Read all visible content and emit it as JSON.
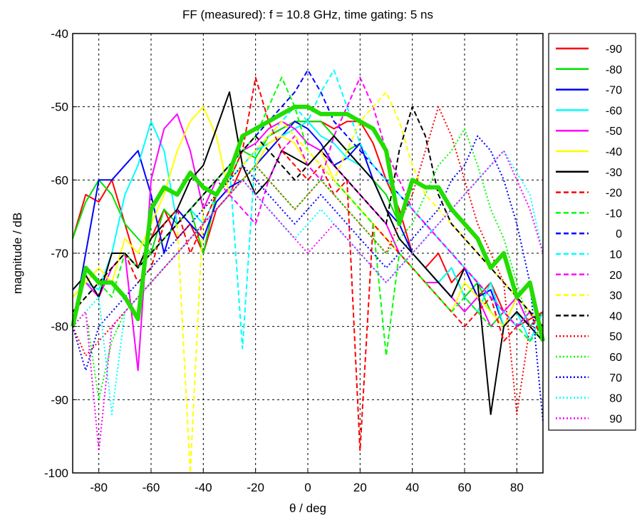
{
  "chart_data": {
    "type": "line",
    "title": "FF (measured): f = 10.8 GHz, time gating: 5 ns",
    "xlabel": "θ / deg",
    "ylabel": "magnitude / dB",
    "xlim": [
      -90,
      90
    ],
    "ylim": [
      -100,
      -40
    ],
    "xticks": [
      -80,
      -60,
      -40,
      -20,
      0,
      20,
      40,
      60,
      80
    ],
    "yticks": [
      -100,
      -90,
      -80,
      -70,
      -60,
      -50,
      -40
    ],
    "grid": true,
    "legend_position": "right, outside plot",
    "x": [
      -90,
      -85,
      -80,
      -75,
      -70,
      -65,
      -60,
      -55,
      -50,
      -45,
      -40,
      -35,
      -30,
      -25,
      -20,
      -15,
      -10,
      -5,
      0,
      5,
      10,
      15,
      20,
      25,
      30,
      35,
      40,
      45,
      50,
      55,
      60,
      65,
      70,
      75,
      80,
      85,
      90
    ],
    "series": [
      {
        "name": "-90",
        "color": "#ff0000",
        "dash": "solid",
        "values": [
          -68,
          -62,
          -63,
          -60,
          -66,
          -72,
          -68,
          -64,
          -68,
          -66,
          -70,
          -64,
          -62,
          -58,
          -56,
          -54,
          -53,
          -52,
          -52,
          -52,
          -53,
          -52,
          -52,
          -55,
          -60,
          -64,
          -70,
          -72,
          -70,
          -74,
          -72,
          -76,
          -74,
          -78,
          -80,
          -79,
          -78
        ]
      },
      {
        "name": "-80",
        "color": "#00e000",
        "dash": "solid",
        "values": [
          -68,
          -63,
          -60,
          -62,
          -66,
          -68,
          -70,
          -64,
          -66,
          -64,
          -70,
          -62,
          -60,
          -56,
          -57,
          -54,
          -53,
          -52,
          -52,
          -52,
          -54,
          -56,
          -55,
          -60,
          -62,
          -66,
          -70,
          -72,
          -74,
          -72,
          -76,
          -74,
          -78,
          -80,
          -76,
          -78,
          -80
        ]
      },
      {
        "name": "-70",
        "color": "#0000ff",
        "dash": "solid",
        "values": [
          -80,
          -70,
          -60,
          -60,
          -58,
          -56,
          -62,
          -70,
          -64,
          -66,
          -68,
          -63,
          -61,
          -60,
          -58,
          -56,
          -54,
          -52,
          -53,
          -55,
          -58,
          -57,
          -55,
          -60,
          -64,
          -66,
          -70,
          -72,
          -74,
          -76,
          -72,
          -76,
          -75,
          -80,
          -78,
          -80,
          -78
        ]
      },
      {
        "name": "-60",
        "color": "#00ffff",
        "dash": "solid",
        "values": [
          -76,
          -74,
          -75,
          -70,
          -62,
          -58,
          -52,
          -56,
          -66,
          -64,
          -66,
          -62,
          -60,
          -58,
          -56,
          -55,
          -54,
          -53,
          -52,
          -54,
          -55,
          -57,
          -58,
          -60,
          -64,
          -68,
          -70,
          -72,
          -74,
          -72,
          -76,
          -78,
          -74,
          -80,
          -78,
          -82,
          -78
        ]
      },
      {
        "name": "-50",
        "color": "#ff00ff",
        "dash": "solid",
        "values": [
          -76,
          -74,
          -76,
          -72,
          -70,
          -86,
          -60,
          -53,
          -51,
          -56,
          -64,
          -60,
          -58,
          -56,
          -55,
          -53,
          -52,
          -53,
          -55,
          -56,
          -58,
          -60,
          -62,
          -64,
          -66,
          -70,
          -72,
          -74,
          -74,
          -76,
          -78,
          -76,
          -80,
          -78,
          -76,
          -80,
          -78
        ]
      },
      {
        "name": "-40",
        "color": "#ffff00",
        "dash": "solid",
        "values": [
          -76,
          -74,
          -72,
          -74,
          -68,
          -70,
          -66,
          -62,
          -56,
          -52,
          -50,
          -54,
          -62,
          -60,
          -58,
          -55,
          -54,
          -55,
          -58,
          -56,
          -60,
          -62,
          -64,
          -66,
          -68,
          -70,
          -72,
          -74,
          -76,
          -78,
          -74,
          -76,
          -78,
          -80,
          -76,
          -78,
          -80
        ]
      },
      {
        "name": "-30",
        "color": "#000000",
        "dash": "solid",
        "values": [
          -75,
          -73,
          -76,
          -70,
          -70,
          -72,
          -68,
          -66,
          -64,
          -60,
          -58,
          -53,
          -48,
          -58,
          -62,
          -60,
          -56,
          -57,
          -58,
          -56,
          -54,
          -56,
          -58,
          -60,
          -64,
          -68,
          -70,
          -72,
          -74,
          -76,
          -72,
          -74,
          -92,
          -80,
          -78,
          -80,
          -82
        ]
      },
      {
        "name": "-20",
        "color": "#ff0000",
        "dash": "dashed",
        "values": [
          -78,
          -76,
          -74,
          -72,
          -70,
          -74,
          -72,
          -66,
          -64,
          -70,
          -66,
          -62,
          -60,
          -56,
          -46,
          -52,
          -56,
          -58,
          -60,
          -58,
          -62,
          -60,
          -97,
          -66,
          -68,
          -70,
          -72,
          -74,
          -76,
          -78,
          -80,
          -78,
          -76,
          -82,
          -80,
          -78,
          -82
        ]
      },
      {
        "name": "-10",
        "color": "#00ff00",
        "dash": "dashed",
        "values": [
          -78,
          -76,
          -74,
          -76,
          -70,
          -72,
          -70,
          -68,
          -66,
          -64,
          -62,
          -60,
          -58,
          -56,
          -54,
          -50,
          -46,
          -50,
          -56,
          -58,
          -60,
          -62,
          -64,
          -66,
          -84,
          -70,
          -72,
          -74,
          -76,
          -78,
          -76,
          -78,
          -80,
          -78,
          -80,
          -82,
          -80
        ]
      },
      {
        "name": "0",
        "color": "#0000ff",
        "dash": "dashed",
        "values": [
          -78,
          -76,
          -74,
          -72,
          -70,
          -72,
          -70,
          -68,
          -66,
          -64,
          -62,
          -60,
          -58,
          -56,
          -54,
          -52,
          -50,
          -48,
          -45,
          -48,
          -52,
          -54,
          -56,
          -58,
          -60,
          -62,
          -64,
          -66,
          -68,
          -70,
          -72,
          -74,
          -76,
          -78,
          -80,
          -78,
          -80
        ]
      },
      {
        "name": "10",
        "color": "#00ffff",
        "dash": "dashed",
        "values": [
          -78,
          -76,
          -74,
          -72,
          -70,
          -72,
          -70,
          -68,
          -66,
          -64,
          -62,
          -60,
          -58,
          -83,
          -56,
          -54,
          -52,
          -50,
          -52,
          -48,
          -45,
          -50,
          -55,
          -58,
          -60,
          -62,
          -64,
          -66,
          -68,
          -70,
          -72,
          -74,
          -76,
          -78,
          -80,
          -78,
          -80
        ]
      },
      {
        "name": "20",
        "color": "#ff00ff",
        "dash": "dashed",
        "values": [
          -78,
          -76,
          -74,
          -72,
          -70,
          -72,
          -70,
          -68,
          -66,
          -64,
          -62,
          -60,
          -62,
          -64,
          -66,
          -60,
          -56,
          -54,
          -58,
          -60,
          -54,
          -50,
          -46,
          -50,
          -56,
          -60,
          -64,
          -66,
          -68,
          -70,
          -72,
          -74,
          -76,
          -78,
          -80,
          -78,
          -80
        ]
      },
      {
        "name": "30",
        "color": "#ffff00",
        "dash": "dashed",
        "values": [
          -78,
          -76,
          -74,
          -72,
          -70,
          -72,
          -70,
          -68,
          -66,
          -100,
          -64,
          -62,
          -60,
          -58,
          -56,
          -54,
          -52,
          -54,
          -56,
          -58,
          -60,
          -56,
          -52,
          -50,
          -48,
          -52,
          -58,
          -62,
          -64,
          -66,
          -68,
          -70,
          -72,
          -74,
          -76,
          -78,
          -80
        ]
      },
      {
        "name": "40",
        "color": "#000000",
        "dash": "dashed",
        "values": [
          -78,
          -76,
          -74,
          -72,
          -70,
          -72,
          -70,
          -68,
          -66,
          -64,
          -62,
          -60,
          -58,
          -56,
          -54,
          -56,
          -58,
          -60,
          -58,
          -56,
          -58,
          -60,
          -62,
          -64,
          -66,
          -56,
          -50,
          -54,
          -62,
          -66,
          -68,
          -70,
          -72,
          -74,
          -76,
          -78,
          -80
        ]
      },
      {
        "name": "50",
        "color": "#ff0000",
        "dash": "dotted",
        "values": [
          -80,
          -84,
          -82,
          -80,
          -78,
          -76,
          -74,
          -72,
          -70,
          -68,
          -66,
          -64,
          -62,
          -60,
          -58,
          -60,
          -62,
          -64,
          -62,
          -60,
          -62,
          -64,
          -66,
          -68,
          -70,
          -66,
          -62,
          -56,
          -50,
          -54,
          -60,
          -66,
          -70,
          -74,
          -92,
          -80,
          -78
        ]
      },
      {
        "name": "60",
        "color": "#00ff00",
        "dash": "dotted",
        "values": [
          -80,
          -78,
          -90,
          -82,
          -78,
          -76,
          -74,
          -72,
          -70,
          -68,
          -66,
          -64,
          -62,
          -60,
          -58,
          -60,
          -62,
          -64,
          -62,
          -60,
          -62,
          -64,
          -66,
          -68,
          -70,
          -68,
          -66,
          -62,
          -58,
          -56,
          -53,
          -58,
          -64,
          -68,
          -74,
          -80,
          -78
        ]
      },
      {
        "name": "70",
        "color": "#0000ff",
        "dash": "dotted",
        "values": [
          -80,
          -86,
          -80,
          -78,
          -76,
          -74,
          -72,
          -70,
          -68,
          -66,
          -64,
          -62,
          -60,
          -58,
          -60,
          -62,
          -64,
          -66,
          -64,
          -62,
          -64,
          -66,
          -68,
          -70,
          -72,
          -70,
          -68,
          -66,
          -64,
          -60,
          -58,
          -54,
          -56,
          -60,
          -66,
          -74,
          -93
        ]
      },
      {
        "name": "80",
        "color": "#00ffff",
        "dash": "dotted",
        "values": [
          -80,
          -78,
          -76,
          -92,
          -78,
          -76,
          -74,
          -72,
          -70,
          -68,
          -66,
          -64,
          -62,
          -60,
          -62,
          -64,
          -66,
          -68,
          -66,
          -64,
          -66,
          -68,
          -70,
          -72,
          -74,
          -72,
          -70,
          -68,
          -66,
          -64,
          -62,
          -60,
          -58,
          -56,
          -59,
          -62,
          -70
        ]
      },
      {
        "name": "90",
        "color": "#ff00ff",
        "dash": "dotted",
        "values": [
          -80,
          -78,
          -97,
          -80,
          -78,
          -76,
          -74,
          -72,
          -70,
          -68,
          -66,
          -64,
          -62,
          -60,
          -62,
          -64,
          -66,
          -68,
          -70,
          -68,
          -66,
          -68,
          -70,
          -72,
          -74,
          -72,
          -70,
          -68,
          -66,
          -64,
          -62,
          -60,
          -58,
          -56,
          -60,
          -64,
          -70
        ]
      },
      {
        "name": "",
        "color": "#22dd00",
        "dash": "solid",
        "width": 6,
        "values": [
          -80,
          -72,
          -74,
          -74,
          -76,
          -79,
          -64,
          -61,
          -62,
          -59,
          -61,
          -62,
          -59,
          -54,
          -53,
          -52,
          -51,
          -50,
          -50,
          -51,
          -51,
          -51,
          -52,
          -53,
          -56,
          -66,
          -60,
          -61,
          -61,
          -64,
          -66,
          -68,
          -72,
          -70,
          -76,
          -74,
          -82
        ]
      }
    ]
  }
}
